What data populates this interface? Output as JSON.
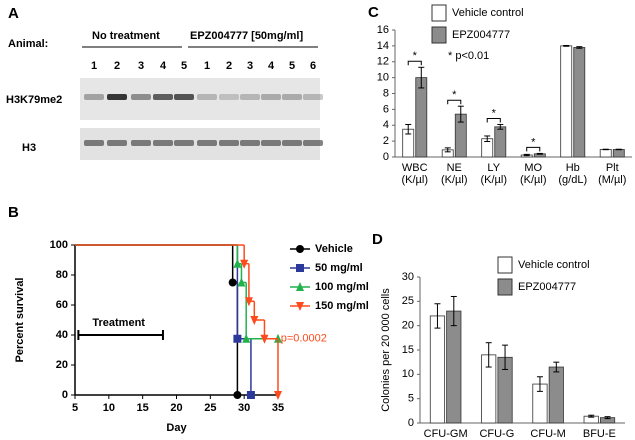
{
  "blot": {
    "panel_label": "A",
    "row_header": "Animal:",
    "groups": [
      {
        "label": "No treatment",
        "animals": [
          1,
          2,
          3,
          4,
          5
        ]
      },
      {
        "label": "EPZ004777 [50mg/ml]",
        "animals": [
          1,
          2,
          3,
          4,
          5,
          6
        ]
      }
    ],
    "rows": [
      "H3K79me2",
      "H3"
    ]
  },
  "chart_data": [
    {
      "type": "line",
      "panel_label": "B",
      "xlabel": "Day",
      "ylabel": "Percent survival",
      "xlim": [
        5,
        35
      ],
      "xticks": [
        5,
        10,
        15,
        20,
        25,
        30,
        35
      ],
      "ylim": [
        0,
        100
      ],
      "yticks": [
        0,
        20,
        40,
        60,
        80,
        100
      ],
      "series": [
        {
          "name": "Vehicle",
          "color": "#000000",
          "marker": "circle",
          "x": [
            5,
            28.3,
            29
          ],
          "values": [
            100,
            75,
            0
          ]
        },
        {
          "name": "50 mg/ml",
          "color": "#2b3a9a",
          "marker": "square",
          "x": [
            5,
            29,
            31
          ],
          "values": [
            100,
            37.5,
            0
          ]
        },
        {
          "name": "100 mg/ml",
          "color": "#22b24c",
          "marker": "triangle",
          "x": [
            5,
            29,
            29.6,
            30.3,
            35
          ],
          "values": [
            100,
            87.5,
            75,
            37.5,
            37.5
          ]
        },
        {
          "name": "150 mg/ml",
          "color": "#ff4a1c",
          "marker": "triangle-down",
          "x": [
            5,
            30,
            30.7,
            31.5,
            33,
            35
          ],
          "values": [
            100,
            87.5,
            62.5,
            50,
            37.5,
            0
          ]
        }
      ],
      "annotations": [
        {
          "text": "Treatment",
          "x": [
            5.5,
            18
          ],
          "y": 40
        },
        {
          "text": "p=0.0002",
          "color": "#ff4a1c",
          "x": 35.4,
          "y": 37.5
        }
      ]
    },
    {
      "type": "bar",
      "panel_label": "C",
      "categories": [
        "WBC",
        "NE",
        "LY",
        "MO",
        "Hb",
        "Plt"
      ],
      "category_units": [
        "(K/µl)",
        "(K/µl)",
        "(K/µl)",
        "(K/µl)",
        "(g/dL)",
        "(M/µl)"
      ],
      "ylim": [
        0,
        16
      ],
      "yticks": [
        0,
        2,
        4,
        6,
        8,
        10,
        12,
        14,
        16
      ],
      "series": [
        {
          "name": "Vehicle control",
          "color": "#ffffff",
          "values": [
            3.5,
            0.9,
            2.3,
            0.25,
            14,
            0.95
          ],
          "errors": [
            0.6,
            0.25,
            0.35,
            0.08,
            0.05,
            0.03
          ]
        },
        {
          "name": "EPZ004777",
          "color": "#8c8c8c",
          "values": [
            10,
            5.4,
            3.8,
            0.4,
            13.8,
            0.95
          ],
          "errors": [
            1.3,
            1.0,
            0.3,
            0.05,
            0.1,
            0.03
          ]
        }
      ],
      "significance": [
        "*",
        "*",
        "*",
        "*",
        null,
        null
      ],
      "note": "* p<0.01"
    },
    {
      "type": "bar",
      "panel_label": "D",
      "ylabel": "Colonies per 20 000 cells",
      "categories": [
        "CFU-GM",
        "CFU-G",
        "CFU-M",
        "BFU-E"
      ],
      "ylim": [
        0,
        30
      ],
      "yticks": [
        0,
        5,
        10,
        15,
        20,
        25,
        30
      ],
      "series": [
        {
          "name": "Vehicle control",
          "color": "#ffffff",
          "values": [
            22,
            14,
            8,
            1.4
          ],
          "errors": [
            2.5,
            2.5,
            1.5,
            0.2
          ]
        },
        {
          "name": "EPZ004777",
          "color": "#8c8c8c",
          "values": [
            23,
            13.5,
            11.5,
            1.1
          ],
          "errors": [
            3,
            2.5,
            1,
            0.2
          ]
        }
      ]
    }
  ]
}
